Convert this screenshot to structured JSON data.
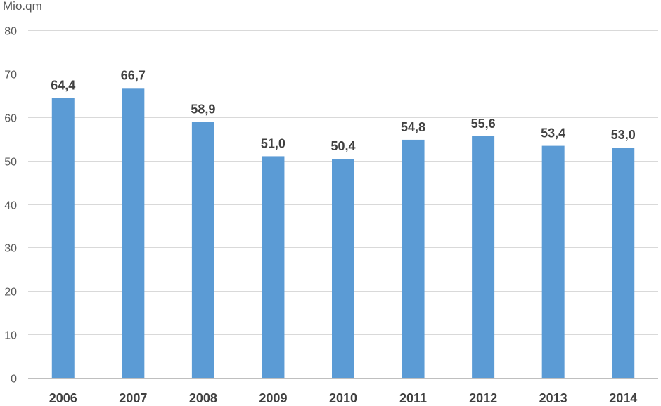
{
  "chart_data": {
    "type": "bar",
    "unit_label": "Mio.qm",
    "categories": [
      "2006",
      "2007",
      "2008",
      "2009",
      "2010",
      "2011",
      "2012",
      "2013",
      "2014"
    ],
    "values": [
      64.4,
      66.7,
      58.9,
      51.0,
      50.4,
      54.8,
      55.6,
      53.4,
      53.0
    ],
    "data_labels": [
      "64,4",
      "66,7",
      "58,9",
      "51,0",
      "50,4",
      "54,8",
      "55,6",
      "53,4",
      "53,0"
    ],
    "ylim": [
      0,
      80
    ],
    "yticks": [
      0,
      10,
      20,
      30,
      40,
      50,
      60,
      70,
      80
    ],
    "grid": true,
    "legend": "none",
    "bar_color": "#5b9bd5"
  }
}
